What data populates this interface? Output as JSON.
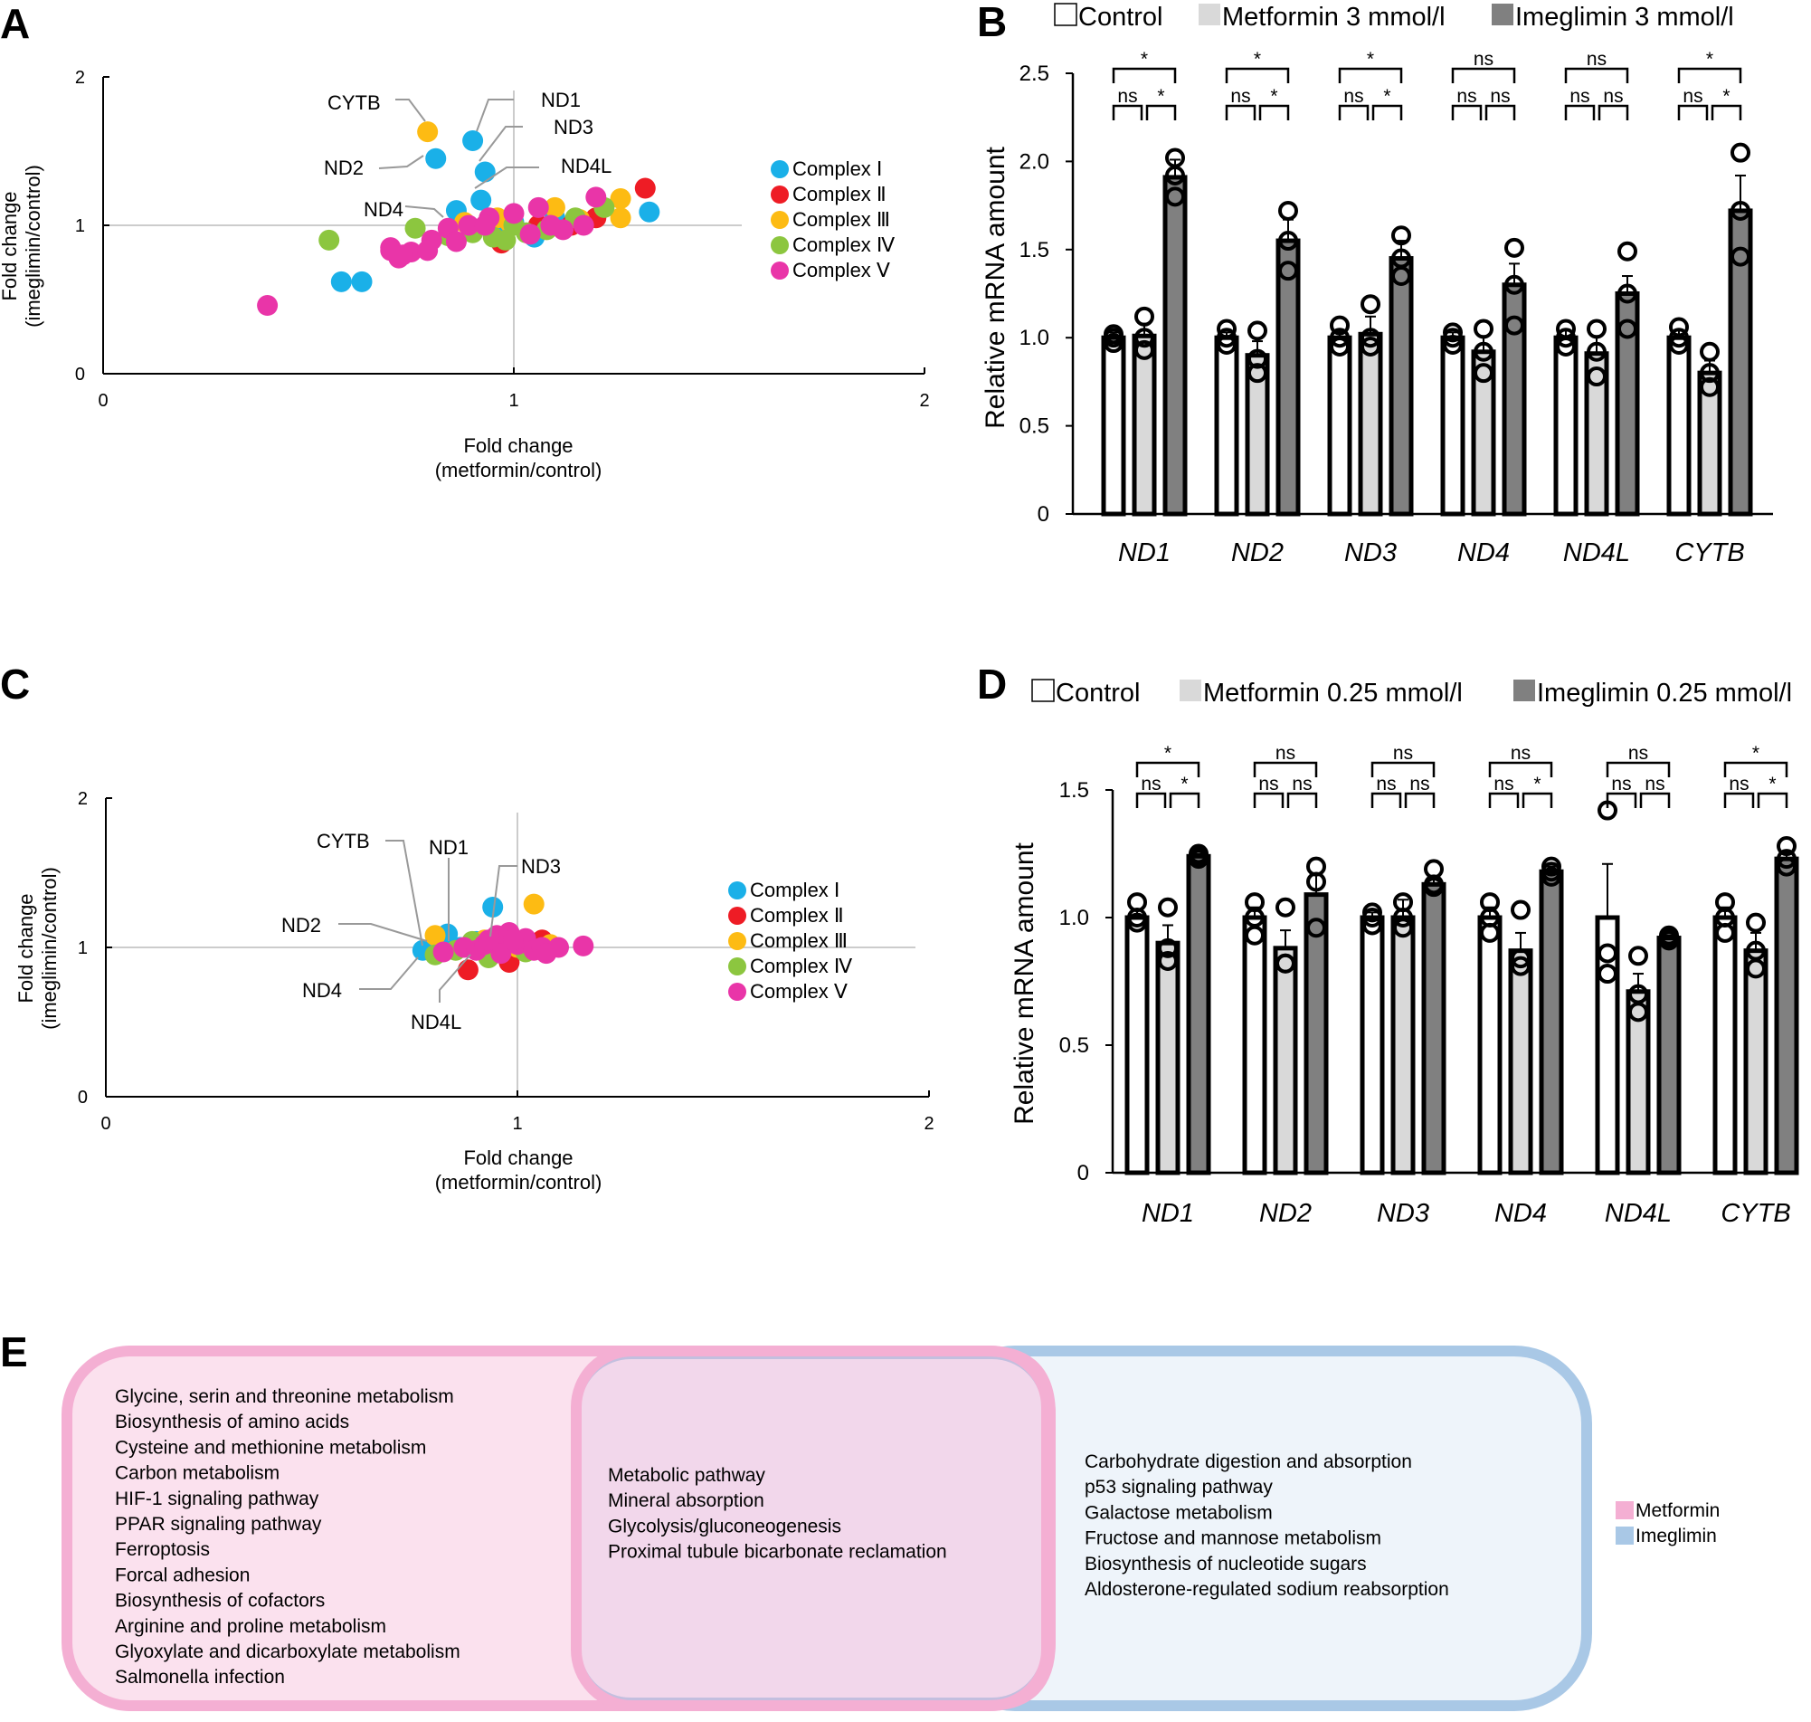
{
  "panel_labels": {
    "a": "A",
    "b": "B",
    "c": "C",
    "d": "D",
    "e": "E"
  },
  "colors": {
    "complex1": "#1ab0e8",
    "complex2": "#ee1c25",
    "complex3": "#fdbb13",
    "complex4": "#8cc63f",
    "complex5": "#e935a8",
    "control": "#ffffff",
    "metformin": "#d9d9d9",
    "imeglimin": "#808080",
    "venn_metformin": "#f4afd3",
    "venn_imeglimin": "#a9c8e6"
  },
  "chart_data": [
    {
      "id": "A",
      "type": "scatter",
      "xlabel": [
        "Fold change",
        "(metformin/control)"
      ],
      "ylabel": [
        "Fold change",
        "(imeglimin/control)"
      ],
      "xlim": [
        0,
        2
      ],
      "ylim": [
        0,
        2
      ],
      "xticks": [
        "0",
        "1",
        "2"
      ],
      "yticks": [
        "0",
        "1",
        "2"
      ],
      "legend": [
        "Complex Ⅰ",
        "Complex Ⅱ",
        "Complex Ⅲ",
        "Complex Ⅳ",
        "Complex Ⅴ"
      ],
      "annotations": [
        "CYTB",
        "ND1",
        "ND2",
        "ND3",
        "ND4L",
        "ND4"
      ],
      "series": [
        {
          "name": "Complex Ⅰ",
          "points": [
            [
              0.9,
              1.57
            ],
            [
              0.81,
              1.45
            ],
            [
              0.93,
              1.36
            ],
            [
              0.92,
              1.17
            ],
            [
              0.86,
              1.1
            ],
            [
              0.58,
              0.62
            ],
            [
              0.63,
              0.62
            ],
            [
              1.33,
              1.09
            ],
            [
              1.1,
              1.05
            ],
            [
              1.0,
              1.02
            ],
            [
              0.96,
              0.99
            ],
            [
              1.05,
              0.92
            ],
            [
              1.1,
              1.0
            ]
          ]
        },
        {
          "name": "Complex Ⅱ",
          "points": [
            [
              1.32,
              1.25
            ],
            [
              1.2,
              1.05
            ],
            [
              0.97,
              0.88
            ],
            [
              1.06,
              1.0
            ],
            [
              1.14,
              1.0
            ]
          ]
        },
        {
          "name": "Complex Ⅲ",
          "points": [
            [
              0.79,
              1.63
            ],
            [
              1.26,
              1.18
            ],
            [
              1.26,
              1.05
            ],
            [
              1.1,
              1.12
            ],
            [
              0.96,
              1.05
            ],
            [
              0.99,
              1.02
            ],
            [
              1.16,
              1.04
            ],
            [
              0.88,
              1.02
            ]
          ]
        },
        {
          "name": "Complex Ⅳ",
          "points": [
            [
              0.55,
              0.9
            ],
            [
              0.76,
              0.98
            ],
            [
              1.22,
              1.12
            ],
            [
              1.03,
              0.95
            ],
            [
              0.95,
              0.92
            ],
            [
              0.9,
              0.95
            ],
            [
              1.08,
              0.97
            ],
            [
              1.0,
              1.0
            ],
            [
              0.84,
              0.93
            ],
            [
              1.15,
              1.05
            ],
            [
              0.98,
              0.9
            ]
          ]
        },
        {
          "name": "Complex Ⅴ",
          "points": [
            [
              0.4,
              0.46
            ],
            [
              0.7,
              0.85
            ],
            [
              0.72,
              0.78
            ],
            [
              0.75,
              0.82
            ],
            [
              0.8,
              0.9
            ],
            [
              0.84,
              0.98
            ],
            [
              0.89,
              1.0
            ],
            [
              0.94,
              1.05
            ],
            [
              1.0,
              1.08
            ],
            [
              1.06,
              1.12
            ],
            [
              1.12,
              0.97
            ],
            [
              1.17,
              1.0
            ],
            [
              1.2,
              1.19
            ],
            [
              0.86,
              0.89
            ],
            [
              0.79,
              0.83
            ],
            [
              0.93,
              1.0
            ],
            [
              1.04,
              0.94
            ],
            [
              1.09,
              1.0
            ],
            [
              0.7,
              0.83
            ],
            [
              0.73,
              0.8
            ]
          ]
        }
      ]
    },
    {
      "id": "B",
      "type": "bar",
      "ylabel": "Relative mRNA amount",
      "ylim": [
        0,
        2.5
      ],
      "yticks": [
        "0",
        "0.5",
        "1.0",
        "1.5",
        "2.0",
        "2.5"
      ],
      "legend": [
        "Control",
        "Metformin 3 mmol/l",
        "Imeglimin 3 mmol/l"
      ],
      "categories": [
        "ND1",
        "ND2",
        "ND3",
        "ND4",
        "ND4L",
        "CYTB"
      ],
      "series": [
        {
          "name": "Control",
          "values": [
            1.0,
            1.0,
            1.0,
            1.0,
            1.0,
            1.0
          ],
          "errors": [
            0.03,
            0.03,
            0.04,
            0.03,
            0.04,
            0.04
          ],
          "points": [
            [
              0.97,
              1.02,
              1.0
            ],
            [
              0.96,
              1.05,
              1.0
            ],
            [
              0.95,
              1.07,
              1.0
            ],
            [
              0.96,
              1.03,
              1.0
            ],
            [
              0.95,
              1.05,
              1.0
            ],
            [
              0.96,
              1.06,
              1.0
            ]
          ]
        },
        {
          "name": "Metformin",
          "values": [
            1.01,
            0.9,
            1.02,
            0.92,
            0.91,
            0.8
          ],
          "errors": [
            0.07,
            0.08,
            0.1,
            0.09,
            0.1,
            0.07
          ],
          "points": [
            [
              0.93,
              1.12,
              1.0
            ],
            [
              0.8,
              1.04,
              0.88
            ],
            [
              0.95,
              1.19,
              1.0
            ],
            [
              0.8,
              1.05,
              0.92
            ],
            [
              0.78,
              1.05,
              0.92
            ],
            [
              0.72,
              0.92,
              0.8
            ]
          ]
        },
        {
          "name": "Imeglimin",
          "values": [
            1.91,
            1.55,
            1.45,
            1.3,
            1.25,
            1.72
          ],
          "errors": [
            0.1,
            0.12,
            0.1,
            0.12,
            0.1,
            0.2
          ],
          "points": [
            [
              1.8,
              2.02,
              1.92
            ],
            [
              1.38,
              1.72,
              1.55
            ],
            [
              1.35,
              1.58,
              1.45
            ],
            [
              1.07,
              1.51,
              1.3
            ],
            [
              1.05,
              1.49,
              1.25
            ],
            [
              1.46,
              2.05,
              1.72
            ]
          ]
        }
      ],
      "significance": [
        {
          "pair": "CM",
          "labels": [
            "ns",
            "ns",
            "ns",
            "ns",
            "ns",
            "ns"
          ]
        },
        {
          "pair": "MI",
          "labels": [
            "*",
            "*",
            "*",
            "ns",
            "ns",
            "*"
          ]
        },
        {
          "pair": "CI",
          "labels": [
            "*",
            "*",
            "*",
            "ns",
            "ns",
            "*"
          ]
        }
      ]
    },
    {
      "id": "C",
      "type": "scatter",
      "xlabel": [
        "Fold change",
        "(metformin/control)"
      ],
      "ylabel": [
        "Fold change",
        "(imeglimin/control)"
      ],
      "xlim": [
        0,
        2
      ],
      "ylim": [
        0,
        2
      ],
      "xticks": [
        "0",
        "1",
        "2"
      ],
      "yticks": [
        "0",
        "1",
        "2"
      ],
      "legend": [
        "Complex Ⅰ",
        "Complex Ⅱ",
        "Complex Ⅲ",
        "Complex Ⅳ",
        "Complex Ⅴ"
      ],
      "annotations": [
        "CYTB",
        "ND1",
        "ND3",
        "ND2",
        "ND4",
        "ND4L"
      ],
      "series": [
        {
          "name": "Complex Ⅰ",
          "points": [
            [
              0.94,
              1.27
            ],
            [
              0.77,
              0.98
            ],
            [
              0.83,
              1.09
            ],
            [
              0.86,
              1.0
            ],
            [
              0.9,
              1.04
            ],
            [
              0.98,
              0.97
            ],
            [
              1.02,
              1.05
            ]
          ]
        },
        {
          "name": "Complex Ⅱ",
          "points": [
            [
              0.88,
              0.85
            ],
            [
              0.98,
              0.9
            ],
            [
              1.06,
              1.05
            ],
            [
              0.95,
              1.02
            ]
          ]
        },
        {
          "name": "Complex Ⅲ",
          "points": [
            [
              1.04,
              1.29
            ],
            [
              1.08,
              1.02
            ],
            [
              0.8,
              1.08
            ],
            [
              0.92,
              1.05
            ],
            [
              1.0,
              1.0
            ]
          ]
        },
        {
          "name": "Complex Ⅳ",
          "points": [
            [
              0.8,
              0.95
            ],
            [
              0.85,
              0.98
            ],
            [
              0.93,
              0.93
            ],
            [
              0.97,
              1.07
            ],
            [
              1.02,
              0.97
            ],
            [
              0.89,
              1.04
            ]
          ]
        },
        {
          "name": "Complex Ⅴ",
          "points": [
            [
              0.82,
              0.97
            ],
            [
              0.87,
              1.0
            ],
            [
              0.9,
              0.98
            ],
            [
              0.92,
              1.02
            ],
            [
              0.95,
              1.08
            ],
            [
              0.98,
              1.1
            ],
            [
              1.0,
              1.02
            ],
            [
              1.02,
              1.06
            ],
            [
              1.04,
              0.98
            ],
            [
              1.06,
              1.0
            ],
            [
              1.1,
              1.0
            ],
            [
              1.16,
              1.01
            ],
            [
              0.96,
              0.96
            ],
            [
              0.99,
              1.05
            ],
            [
              1.07,
              0.96
            ],
            [
              0.93,
              1.05
            ]
          ]
        }
      ]
    },
    {
      "id": "D",
      "type": "bar",
      "ylabel": "Relative mRNA amount",
      "ylim": [
        0,
        1.5
      ],
      "yticks": [
        "0",
        "0.5",
        "1.0",
        "1.5"
      ],
      "legend": [
        "Control",
        "Metformin 0.25 mmol/l",
        "Imeglimin 0.25 mmol/l"
      ],
      "categories": [
        "ND1",
        "ND2",
        "ND3",
        "ND4",
        "ND4L",
        "CYTB"
      ],
      "series": [
        {
          "name": "Control",
          "values": [
            1.0,
            1.0,
            1.0,
            1.0,
            1.0,
            1.0
          ],
          "errors": [
            0.03,
            0.04,
            0.02,
            0.04,
            0.21,
            0.04
          ],
          "points": [
            [
              0.98,
              1.06,
              1.0
            ],
            [
              0.93,
              1.06,
              1.0
            ],
            [
              0.97,
              1.02,
              1.0
            ],
            [
              0.94,
              1.06,
              1.0
            ],
            [
              0.78,
              1.42,
              0.86
            ],
            [
              0.94,
              1.06,
              1.0
            ]
          ]
        },
        {
          "name": "Metformin",
          "values": [
            0.9,
            0.88,
            1.0,
            0.87,
            0.71,
            0.87
          ],
          "errors": [
            0.07,
            0.07,
            0.07,
            0.07,
            0.07,
            0.07
          ],
          "points": [
            [
              0.83,
              1.04,
              0.88
            ],
            [
              0.82,
              1.04,
              0.82
            ],
            [
              0.96,
              1.06,
              1.0
            ],
            [
              0.81,
              1.03,
              0.84
            ],
            [
              0.63,
              0.85,
              0.7
            ],
            [
              0.8,
              0.98,
              0.87
            ]
          ]
        },
        {
          "name": "Imeglimin",
          "values": [
            1.24,
            1.09,
            1.13,
            1.18,
            0.92,
            1.23
          ],
          "errors": [
            0.01,
            0.08,
            0.03,
            0.02,
            0.01,
            0.03
          ],
          "points": [
            [
              1.23,
              1.25,
              1.24
            ],
            [
              0.96,
              1.2,
              1.14
            ],
            [
              1.12,
              1.19,
              1.13
            ],
            [
              1.16,
              1.2,
              1.18
            ],
            [
              0.91,
              0.93,
              0.92
            ],
            [
              1.2,
              1.28,
              1.23
            ]
          ]
        }
      ],
      "significance": [
        {
          "pair": "CM",
          "labels": [
            "ns",
            "ns",
            "ns",
            "ns",
            "ns",
            "ns"
          ]
        },
        {
          "pair": "MI",
          "labels": [
            "*",
            "ns",
            "ns",
            "*",
            "ns",
            "*"
          ]
        },
        {
          "pair": "CI",
          "labels": [
            "*",
            "ns",
            "ns",
            "ns",
            "ns",
            "*"
          ]
        }
      ]
    }
  ],
  "venn": {
    "metformin_only": [
      "Glycine, serin and threonine metabolism",
      "Biosynthesis of amino acids",
      "Cysteine and methionine metabolism",
      "Carbon metabolism",
      "HIF-1 signaling pathway",
      "PPAR signaling pathway",
      "Ferroptosis",
      "Forcal adhesion",
      "Biosynthesis of cofactors",
      "Arginine and proline metabolism",
      "Glyoxylate and dicarboxylate metabolism",
      "Salmonella infection"
    ],
    "shared": [
      "Metabolic pathway",
      "Mineral absorption",
      "Glycolysis/gluconeogenesis",
      "Proximal tubule bicarbonate reclamation"
    ],
    "imeglimin_only": [
      "Carbohydrate digestion and absorption",
      "p53 signaling pathway",
      "Galactose metabolism",
      "Fructose and mannose metabolism",
      "Biosynthesis of nucleotide sugars",
      "Aldosterone-regulated sodium reabsorption"
    ],
    "legend": [
      "Metformin",
      "Imeglimin"
    ]
  }
}
